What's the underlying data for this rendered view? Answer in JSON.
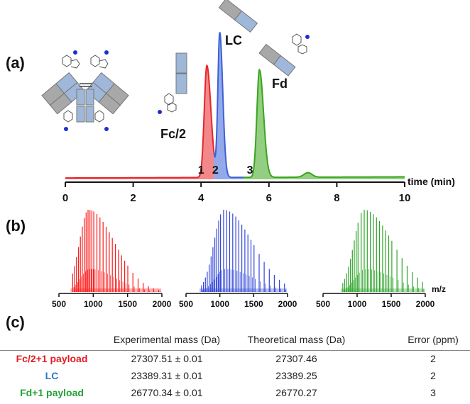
{
  "panels": [
    "(a)",
    "(b)",
    "(c)"
  ],
  "chromatogram": {
    "x_label": "time (min)",
    "x_ticks": [
      0,
      2,
      4,
      6,
      8,
      10
    ],
    "xlim": [
      0,
      10
    ],
    "peaks": [
      {
        "id": "1",
        "label": "Fc/2",
        "center": 4.17,
        "height": 1.0,
        "color": "#e8262a"
      },
      {
        "id": "2",
        "label": "LC",
        "center": 4.55,
        "height": 1.29,
        "color": "#3d62d8"
      },
      {
        "id": "3",
        "label": "Fd",
        "center": 5.72,
        "height": 0.96,
        "color": "#3aa51c"
      }
    ]
  },
  "mass_spectra": {
    "x_label": "m/z",
    "x_ticks": [
      500,
      1000,
      1500,
      2000
    ],
    "xlim": [
      500,
      2000
    ],
    "colors": [
      "#ff1a1a",
      "#3348d8",
      "#2fa52a"
    ]
  },
  "table": {
    "headers": [
      "",
      "Experimental mass (Da)",
      "Theoretical mass (Da)",
      "Error (ppm)"
    ],
    "rows": [
      {
        "name": "Fc/2+1 payload",
        "color": "#e21d24",
        "experimental": "27307.51 ± 0.01",
        "theoretical": "27307.46",
        "error": "2"
      },
      {
        "name": "LC",
        "color": "#2b78c8",
        "experimental": "23389.31 ± 0.01",
        "theoretical": "23389.25",
        "error": "2"
      },
      {
        "name": "Fd+1 payload",
        "color": "#24a037",
        "experimental": "26770.34 ± 0.01",
        "theoretical": "26770.27",
        "error": "3"
      }
    ]
  },
  "chart_data": [
    {
      "type": "line",
      "xlabel": "time (min)",
      "ylabel": "",
      "xlim": [
        0,
        10
      ],
      "x_ticks": [
        0,
        2,
        4,
        6,
        8,
        10
      ],
      "series": [
        {
          "name": "Fc/2",
          "peak_label": "1",
          "apex_time": 4.17,
          "relative_height": 1.0
        },
        {
          "name": "LC",
          "peak_label": "2",
          "apex_time": 4.55,
          "relative_height": 1.29
        },
        {
          "name": "Fd",
          "peak_label": "3",
          "apex_time": 5.72,
          "relative_height": 0.96
        }
      ]
    },
    {
      "type": "bar",
      "xlabel": "m/z",
      "xlim": [
        500,
        2000
      ],
      "x_ticks": [
        500,
        1000,
        1500,
        2000
      ],
      "series": [
        {
          "name": "Fc/2 spectrum",
          "apex_mz": 930,
          "range": [
            680,
            1960
          ]
        },
        {
          "name": "LC spectrum",
          "apex_mz": 1060,
          "range": [
            720,
            1950
          ]
        },
        {
          "name": "Fd spectrum",
          "apex_mz": 1100,
          "range": [
            780,
            1980
          ]
        }
      ]
    }
  ]
}
